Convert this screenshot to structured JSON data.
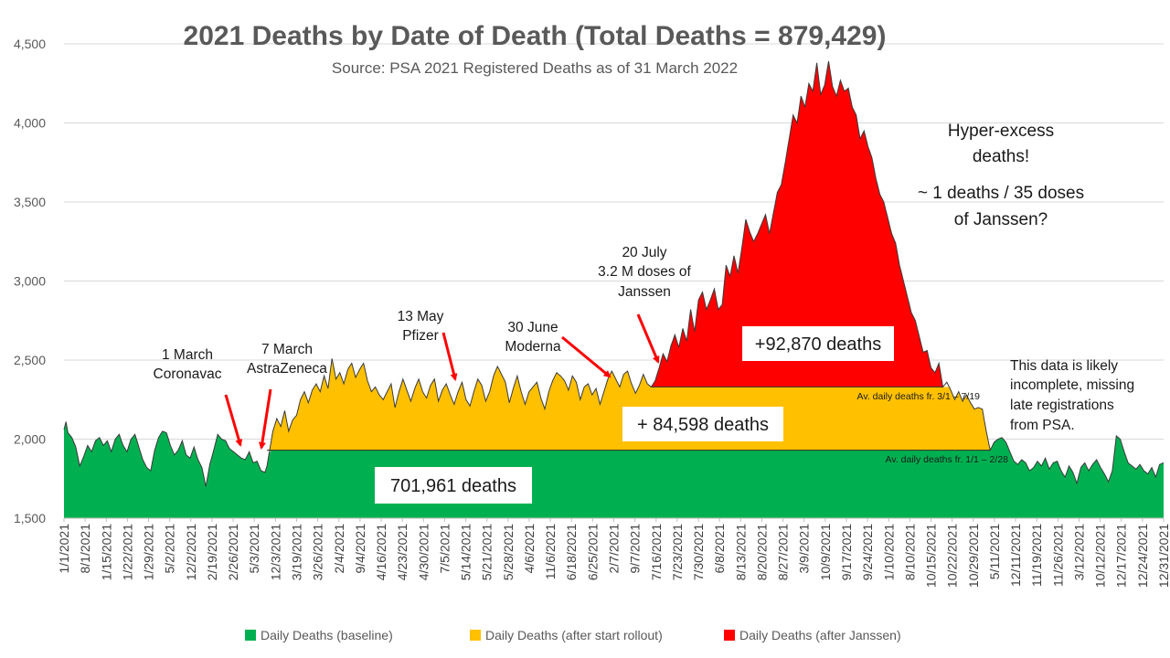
{
  "chart_data": {
    "type": "area",
    "title": "2021 Deaths by Date of Death (Total Deaths = 879,429)",
    "subtitle": "Source: PSA 2021 Registered Deaths as of 31 March 2022",
    "ylim": [
      1500,
      4500
    ],
    "y_ticks": [
      "1,500",
      "2,000",
      "2,500",
      "3,000",
      "3,500",
      "4,000",
      "4,500"
    ],
    "y_tick_values": [
      1500,
      2000,
      2500,
      3000,
      3500,
      4000,
      4500
    ],
    "x_tick_labels": [
      "1/1/2021",
      "8/1/2021",
      "1/15/2021",
      "1/22/2021",
      "1/29/2021",
      "5/2/2021",
      "12/2/2021",
      "2/19/2021",
      "2/26/2021",
      "5/3/2021",
      "12/3/2021",
      "3/19/2021",
      "3/26/2021",
      "2/4/2021",
      "9/4/2021",
      "4/16/2021",
      "4/23/2021",
      "4/30/2021",
      "7/5/2021",
      "5/14/2021",
      "5/21/2021",
      "5/28/2021",
      "4/6/2021",
      "11/6/2021",
      "6/18/2021",
      "6/25/2021",
      "2/7/2021",
      "9/7/2021",
      "7/16/2021",
      "7/23/2021",
      "7/30/2021",
      "6/8/2021",
      "8/13/2021",
      "8/20/2021",
      "8/27/2021",
      "3/9/2021",
      "10/9/2021",
      "9/17/2021",
      "9/24/2021",
      "1/10/2021",
      "8/10/2021",
      "10/15/2021",
      "10/22/2021",
      "10/29/2021",
      "5/11/2021",
      "12/11/2021",
      "11/19/2021",
      "11/26/2021",
      "3/12/2021",
      "10/12/2021",
      "12/17/2021",
      "12/24/2021",
      "12/31/2021"
    ],
    "baseline_average": 1930,
    "rollout_average": 2330,
    "series": [
      {
        "name": "Daily Deaths (baseline)",
        "color": "#00b050"
      },
      {
        "name": "Daily Deaths (after start rollout)",
        "color": "#ffc000"
      },
      {
        "name": "Daily Deaths (after Janssen)",
        "color": "#ff0000"
      }
    ],
    "daily_deaths_profile": [
      [
        0,
        2060
      ],
      [
        1,
        2110
      ],
      [
        2,
        2040
      ],
      [
        4,
        2010
      ],
      [
        6,
        1950
      ],
      [
        8,
        1830
      ],
      [
        10,
        1890
      ],
      [
        12,
        1960
      ],
      [
        14,
        1920
      ],
      [
        16,
        1990
      ],
      [
        18,
        2010
      ],
      [
        20,
        1960
      ],
      [
        22,
        1990
      ],
      [
        24,
        1920
      ],
      [
        26,
        2000
      ],
      [
        28,
        2030
      ],
      [
        30,
        1960
      ],
      [
        32,
        1920
      ],
      [
        34,
        2000
      ],
      [
        36,
        2030
      ],
      [
        38,
        1950
      ],
      [
        40,
        1870
      ],
      [
        42,
        1820
      ],
      [
        44,
        1800
      ],
      [
        46,
        1930
      ],
      [
        48,
        2010
      ],
      [
        50,
        2050
      ],
      [
        52,
        2040
      ],
      [
        54,
        1960
      ],
      [
        56,
        1900
      ],
      [
        58,
        1930
      ],
      [
        60,
        1990
      ],
      [
        62,
        1900
      ],
      [
        64,
        1880
      ],
      [
        66,
        1950
      ],
      [
        68,
        1870
      ],
      [
        70,
        1820
      ],
      [
        72,
        1700
      ],
      [
        74,
        1840
      ],
      [
        76,
        1930
      ],
      [
        78,
        2030
      ],
      [
        80,
        2000
      ],
      [
        82,
        1990
      ],
      [
        84,
        1940
      ],
      [
        86,
        1920
      ],
      [
        88,
        1900
      ],
      [
        90,
        1880
      ],
      [
        92,
        1870
      ],
      [
        94,
        1920
      ],
      [
        96,
        1850
      ],
      [
        98,
        1860
      ],
      [
        100,
        1800
      ],
      [
        102,
        1790
      ],
      [
        103,
        1830
      ],
      [
        106,
        2050
      ],
      [
        108,
        2130
      ],
      [
        110,
        2080
      ],
      [
        112,
        2180
      ],
      [
        114,
        2050
      ],
      [
        116,
        2120
      ],
      [
        118,
        2150
      ],
      [
        120,
        2250
      ],
      [
        122,
        2300
      ],
      [
        124,
        2230
      ],
      [
        126,
        2310
      ],
      [
        128,
        2350
      ],
      [
        130,
        2300
      ],
      [
        132,
        2400
      ],
      [
        134,
        2320
      ],
      [
        136,
        2510
      ],
      [
        138,
        2380
      ],
      [
        140,
        2420
      ],
      [
        142,
        2350
      ],
      [
        144,
        2440
      ],
      [
        146,
        2480
      ],
      [
        148,
        2390
      ],
      [
        150,
        2440
      ],
      [
        152,
        2480
      ],
      [
        154,
        2370
      ],
      [
        156,
        2300
      ],
      [
        158,
        2330
      ],
      [
        160,
        2280
      ],
      [
        162,
        2250
      ],
      [
        164,
        2300
      ],
      [
        166,
        2350
      ],
      [
        168,
        2200
      ],
      [
        170,
        2300
      ],
      [
        172,
        2380
      ],
      [
        174,
        2310
      ],
      [
        176,
        2240
      ],
      [
        178,
        2320
      ],
      [
        180,
        2380
      ],
      [
        182,
        2300
      ],
      [
        184,
        2260
      ],
      [
        186,
        2340
      ],
      [
        188,
        2380
      ],
      [
        190,
        2240
      ],
      [
        192,
        2310
      ],
      [
        194,
        2350
      ],
      [
        196,
        2280
      ],
      [
        198,
        2220
      ],
      [
        200,
        2300
      ],
      [
        202,
        2360
      ],
      [
        204,
        2250
      ],
      [
        206,
        2210
      ],
      [
        208,
        2300
      ],
      [
        210,
        2380
      ],
      [
        212,
        2340
      ],
      [
        214,
        2240
      ],
      [
        216,
        2300
      ],
      [
        218,
        2400
      ],
      [
        220,
        2460
      ],
      [
        222,
        2410
      ],
      [
        224,
        2360
      ],
      [
        226,
        2230
      ],
      [
        228,
        2320
      ],
      [
        230,
        2400
      ],
      [
        232,
        2300
      ],
      [
        234,
        2220
      ],
      [
        236,
        2300
      ],
      [
        238,
        2330
      ],
      [
        240,
        2360
      ],
      [
        242,
        2260
      ],
      [
        244,
        2190
      ],
      [
        246,
        2300
      ],
      [
        248,
        2370
      ],
      [
        250,
        2420
      ],
      [
        252,
        2400
      ],
      [
        254,
        2370
      ],
      [
        256,
        2310
      ],
      [
        258,
        2400
      ],
      [
        260,
        2360
      ],
      [
        262,
        2250
      ],
      [
        264,
        2330
      ],
      [
        266,
        2350
      ],
      [
        268,
        2280
      ],
      [
        270,
        2320
      ],
      [
        272,
        2220
      ],
      [
        274,
        2300
      ],
      [
        276,
        2380
      ],
      [
        278,
        2430
      ],
      [
        280,
        2380
      ],
      [
        282,
        2330
      ],
      [
        284,
        2410
      ],
      [
        286,
        2430
      ],
      [
        288,
        2350
      ],
      [
        290,
        2290
      ],
      [
        292,
        2340
      ],
      [
        294,
        2410
      ],
      [
        296,
        2350
      ],
      [
        298,
        2330
      ],
      [
        300,
        2370
      ],
      [
        302,
        2450
      ],
      [
        304,
        2540
      ],
      [
        306,
        2490
      ],
      [
        308,
        2590
      ],
      [
        310,
        2660
      ],
      [
        312,
        2580
      ],
      [
        314,
        2700
      ],
      [
        316,
        2620
      ],
      [
        318,
        2820
      ],
      [
        320,
        2680
      ],
      [
        322,
        2880
      ],
      [
        324,
        2930
      ],
      [
        326,
        2820
      ],
      [
        328,
        2880
      ],
      [
        330,
        2950
      ],
      [
        332,
        2820
      ],
      [
        334,
        2850
      ],
      [
        336,
        3100
      ],
      [
        338,
        3030
      ],
      [
        340,
        3160
      ],
      [
        342,
        3050
      ],
      [
        344,
        3210
      ],
      [
        346,
        3390
      ],
      [
        348,
        3310
      ],
      [
        350,
        3250
      ],
      [
        352,
        3300
      ],
      [
        354,
        3360
      ],
      [
        356,
        3420
      ],
      [
        358,
        3300
      ],
      [
        360,
        3430
      ],
      [
        362,
        3560
      ],
      [
        364,
        3610
      ],
      [
        366,
        3750
      ],
      [
        368,
        3900
      ],
      [
        370,
        4050
      ],
      [
        372,
        4000
      ],
      [
        374,
        4170
      ],
      [
        376,
        4100
      ],
      [
        378,
        4250
      ],
      [
        380,
        4200
      ],
      [
        382,
        4380
      ],
      [
        384,
        4180
      ],
      [
        386,
        4240
      ],
      [
        388,
        4390
      ],
      [
        390,
        4230
      ],
      [
        392,
        4170
      ],
      [
        394,
        4270
      ],
      [
        396,
        4200
      ],
      [
        398,
        4220
      ],
      [
        400,
        4100
      ],
      [
        402,
        4050
      ],
      [
        404,
        3900
      ],
      [
        406,
        3950
      ],
      [
        408,
        3850
      ],
      [
        410,
        3780
      ],
      [
        412,
        3650
      ],
      [
        414,
        3550
      ],
      [
        416,
        3500
      ],
      [
        418,
        3400
      ],
      [
        420,
        3300
      ],
      [
        422,
        3240
      ],
      [
        424,
        3100
      ],
      [
        426,
        3000
      ],
      [
        428,
        2900
      ],
      [
        430,
        2800
      ],
      [
        432,
        2750
      ],
      [
        434,
        2650
      ],
      [
        436,
        2550
      ],
      [
        438,
        2560
      ],
      [
        440,
        2450
      ],
      [
        442,
        2420
      ],
      [
        444,
        2480
      ],
      [
        446,
        2330
      ],
      [
        448,
        2360
      ],
      [
        450,
        2310
      ],
      [
        452,
        2250
      ],
      [
        454,
        2300
      ],
      [
        456,
        2240
      ],
      [
        458,
        2280
      ],
      [
        460,
        2230
      ],
      [
        462,
        2190
      ],
      [
        464,
        2200
      ],
      [
        466,
        2190
      ],
      [
        468,
        2050
      ],
      [
        470,
        1930
      ],
      [
        472,
        1980
      ],
      [
        474,
        2000
      ],
      [
        476,
        2010
      ],
      [
        478,
        1980
      ],
      [
        480,
        1920
      ],
      [
        482,
        1860
      ],
      [
        484,
        1840
      ],
      [
        486,
        1870
      ],
      [
        488,
        1850
      ],
      [
        490,
        1800
      ],
      [
        492,
        1820
      ],
      [
        494,
        1860
      ],
      [
        496,
        1830
      ],
      [
        498,
        1880
      ],
      [
        500,
        1810
      ],
      [
        502,
        1850
      ],
      [
        504,
        1860
      ],
      [
        506,
        1800
      ],
      [
        508,
        1760
      ],
      [
        510,
        1830
      ],
      [
        512,
        1790
      ],
      [
        514,
        1720
      ],
      [
        516,
        1820
      ],
      [
        518,
        1850
      ],
      [
        520,
        1800
      ],
      [
        522,
        1840
      ],
      [
        524,
        1870
      ],
      [
        526,
        1820
      ],
      [
        528,
        1780
      ],
      [
        530,
        1730
      ],
      [
        532,
        1800
      ],
      [
        534,
        2020
      ],
      [
        536,
        2000
      ],
      [
        538,
        1920
      ],
      [
        540,
        1850
      ],
      [
        542,
        1830
      ],
      [
        544,
        1810
      ],
      [
        546,
        1840
      ],
      [
        548,
        1800
      ],
      [
        550,
        1780
      ],
      [
        552,
        1820
      ],
      [
        554,
        1760
      ],
      [
        556,
        1840
      ],
      [
        558,
        1850
      ]
    ]
  },
  "annotations": {
    "coronavac": {
      "line1": "1 March",
      "line2": "Coronavac"
    },
    "astrazeneca": {
      "line1": "7 March",
      "line2": "AstraZeneca"
    },
    "pfizer": {
      "line1": "13 May",
      "line2": "Pfizer"
    },
    "moderna": {
      "line1": "30 June",
      "line2": "Moderna"
    },
    "janssen": {
      "line1": "20 July",
      "line2": "3.2 M doses of",
      "line3": "Janssen"
    },
    "hyper": {
      "line1": "Hyper-excess",
      "line2": "deaths!",
      "line3": "~ 1 deaths / 35 doses",
      "line4": "of Janssen?"
    },
    "incomplete": {
      "line1": "This data is likely",
      "line2": "incomplete, missing",
      "line3": "late registrations",
      "line4": "from PSA."
    },
    "avg_baseline_label": "Av. daily deaths fr. 1/1 – 2/28",
    "avg_rollout_label": "Av. daily deaths fr. 3/1 – 7/19",
    "box_green": "701,961 deaths",
    "box_yellow": "+ 84,598 deaths",
    "box_red": "+92,870 deaths"
  },
  "legend": [
    {
      "label": "Daily Deaths (baseline)",
      "color": "#00b050"
    },
    {
      "label": "Daily Deaths (after start rollout)",
      "color": "#ffc000"
    },
    {
      "label": "Daily Deaths (after Janssen)",
      "color": "#ff0000"
    }
  ]
}
